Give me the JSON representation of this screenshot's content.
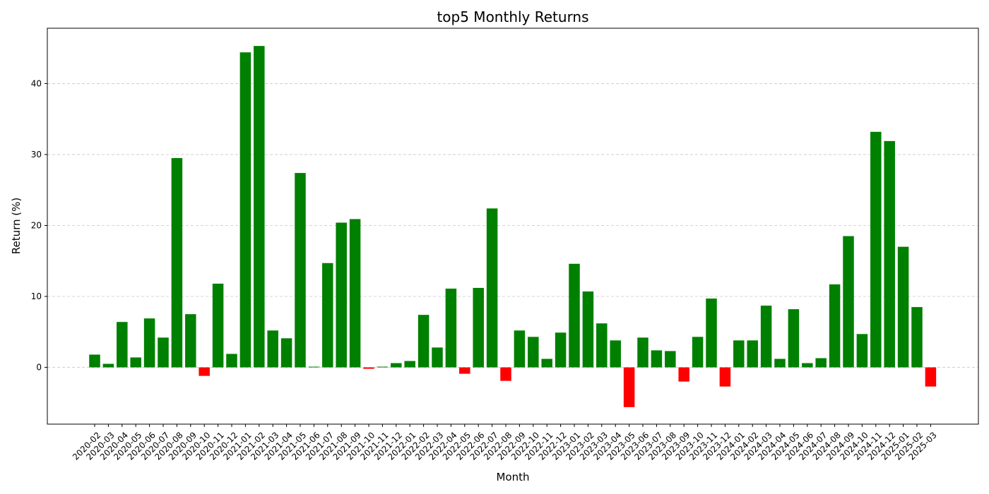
{
  "chart_data": {
    "type": "bar",
    "title": "top5 Monthly Returns",
    "xlabel": "Month",
    "ylabel": "Return (%)",
    "ylim": [
      -8.0,
      47.8
    ],
    "yticks": [
      0,
      10,
      20,
      30,
      40
    ],
    "grid": "y-dashed",
    "colors": {
      "positive": "#008000",
      "negative": "#ff0000",
      "grid": "#c8c8c8",
      "axis": "#000000"
    },
    "categories": [
      "2020-02",
      "2020-03",
      "2020-04",
      "2020-05",
      "2020-06",
      "2020-07",
      "2020-08",
      "2020-09",
      "2020-10",
      "2020-11",
      "2020-12",
      "2021-01",
      "2021-02",
      "2021-03",
      "2021-04",
      "2021-05",
      "2021-06",
      "2021-07",
      "2021-08",
      "2021-09",
      "2021-10",
      "2021-11",
      "2021-12",
      "2022-01",
      "2022-02",
      "2022-03",
      "2022-04",
      "2022-05",
      "2022-06",
      "2022-07",
      "2022-08",
      "2022-09",
      "2022-10",
      "2022-11",
      "2022-12",
      "2023-01",
      "2023-02",
      "2023-03",
      "2023-04",
      "2023-05",
      "2023-06",
      "2023-07",
      "2023-08",
      "2023-09",
      "2023-10",
      "2023-11",
      "2023-12",
      "2024-01",
      "2024-02",
      "2024-03",
      "2024-04",
      "2024-05",
      "2024-06",
      "2024-07",
      "2024-08",
      "2024-09",
      "2024-10",
      "2024-11",
      "2024-12",
      "2025-01",
      "2025-02",
      "2025-03"
    ],
    "values": [
      1.8,
      0.5,
      6.4,
      1.4,
      6.9,
      4.2,
      29.5,
      7.5,
      -1.2,
      11.8,
      1.9,
      44.4,
      45.3,
      5.2,
      4.1,
      27.4,
      0.1,
      14.7,
      20.4,
      20.9,
      -0.2,
      0.1,
      0.6,
      0.9,
      7.4,
      2.8,
      11.1,
      -0.9,
      11.2,
      22.4,
      -1.9,
      5.2,
      4.3,
      1.2,
      4.9,
      14.6,
      10.7,
      6.2,
      3.8,
      -5.6,
      4.2,
      2.4,
      2.3,
      -2.0,
      4.3,
      9.7,
      -2.7,
      3.8,
      3.8,
      8.7,
      1.2,
      8.2,
      0.6,
      1.3,
      11.7,
      18.5,
      4.7,
      33.2,
      31.9,
      17.0,
      8.5,
      -2.7
    ]
  }
}
